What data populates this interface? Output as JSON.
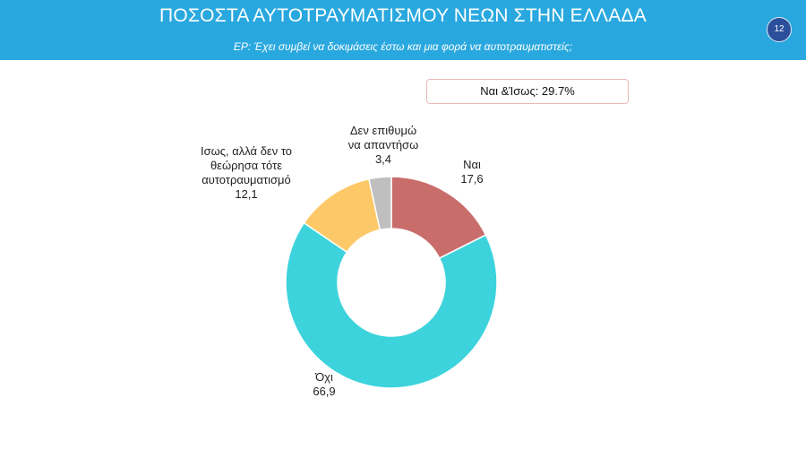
{
  "header": {
    "title": "ΠΟΣΟΣΤΑ ΑΥΤΟΤΡΑΥΜΑΤΙΣΜΟΥ ΝΕΩΝ ΣΤΗΝ ΕΛΛΑΔΑ",
    "subtitle": "ΕΡ: Έχει συμβεί να δοκιμάσεις έστω και μια φορά να αυτοτραυματιστείς;",
    "page_number": "12",
    "background_color": "#29a8df"
  },
  "callout": "Ναι &Ίσως: 29.7%",
  "chart_data": {
    "type": "pie",
    "variant": "donut",
    "categories": [
      "Ναι",
      "Όχι",
      "Ισως, αλλά δεν το θεώρησα τότε αυτοτραυματισμό",
      "Δεν επιθυμώ να απαντήσω"
    ],
    "values": [
      17.6,
      66.9,
      12.1,
      3.4
    ],
    "value_labels": [
      "17,6",
      "66,9",
      "12,1",
      "3,4"
    ],
    "label_lines": [
      [
        "Ναι",
        "17,6"
      ],
      [
        "Όχι",
        "66,9"
      ],
      [
        "Ισως, αλλά δεν το",
        "θεώρησα τότε",
        "αυτοτραυματισμό",
        "12,1"
      ],
      [
        "Δεν επιθυμώ",
        "να απαντήσω",
        "3,4"
      ]
    ],
    "colors": [
      "#c96d6b",
      "#3dd3dc",
      "#fdc968",
      "#bfbfbf"
    ],
    "start_angle": "12 o'clock, clockwise",
    "legend": "none"
  }
}
